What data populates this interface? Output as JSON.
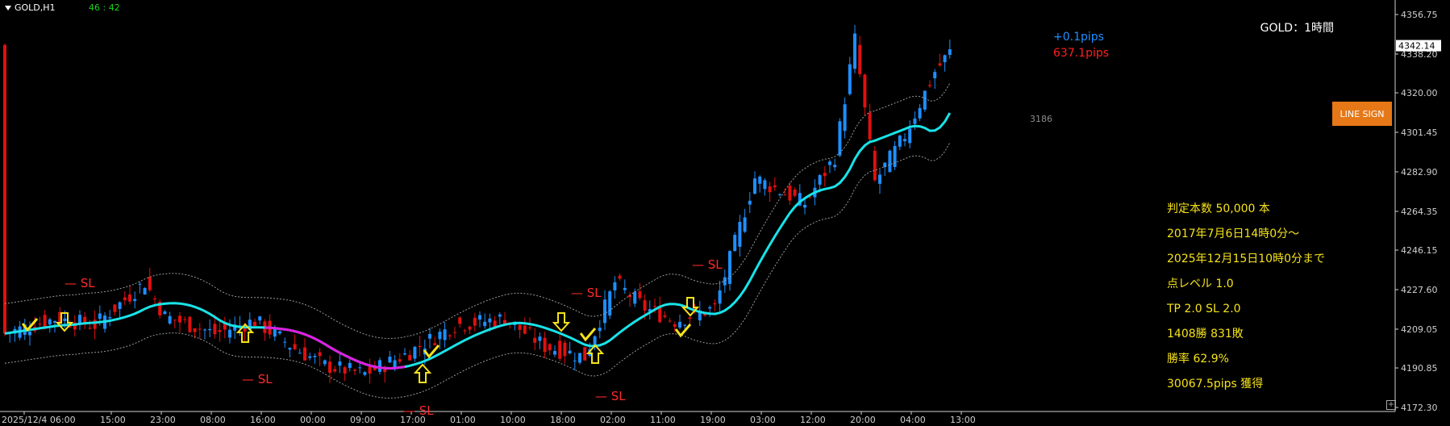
{
  "header": {
    "symbol": "GOLD,H1",
    "timer": "46 : 42"
  },
  "title_label": "GOLD：1時間",
  "pips": {
    "current": "+0.1pips",
    "total": "637.1pips"
  },
  "bars_count": "3186",
  "line_sign_button": "LINE SIGN",
  "current_price": "4342.14",
  "sl_label": "— SL",
  "stats": [
    "判定本数 50,000 本",
    "2017年7月6日14時0分～",
    "2025年12月15日10時0分まで",
    "点レベル 1.0",
    "TP 2.0 SL 2.0",
    "1408勝 831敗",
    "勝率 62.9%",
    "30067.5pips 獲得"
  ],
  "chart_data": {
    "type": "candlestick",
    "symbol": "GOLD",
    "timeframe": "H1",
    "y_ticks": [
      "4356.75",
      "4338.20",
      "4320.00",
      "4301.45",
      "4282.90",
      "4264.35",
      "4246.15",
      "4227.60",
      "4209.05",
      "4190.85",
      "4172.30"
    ],
    "x_ticks": [
      "2025/12/4 06:00",
      "15:00",
      "23:00",
      "08:00",
      "16:00",
      "00:00",
      "09:00",
      "17:00",
      "01:00",
      "10:00",
      "18:00",
      "02:00",
      "11:00",
      "19:00",
      "03:00",
      "12:00",
      "20:00",
      "04:00",
      "13:00"
    ],
    "ylim": [
      4170,
      4360
    ],
    "colors": {
      "bull": "#1e8fff",
      "bear": "#e01010",
      "ma_up": "#19e3e8",
      "ma_down": "#e01ee0",
      "band": "#9a9a9a",
      "signal": "#f5e21a"
    }
  },
  "colors": {
    "background": "#000000",
    "stats_text": "#f5e21a",
    "button": "#e67817"
  }
}
